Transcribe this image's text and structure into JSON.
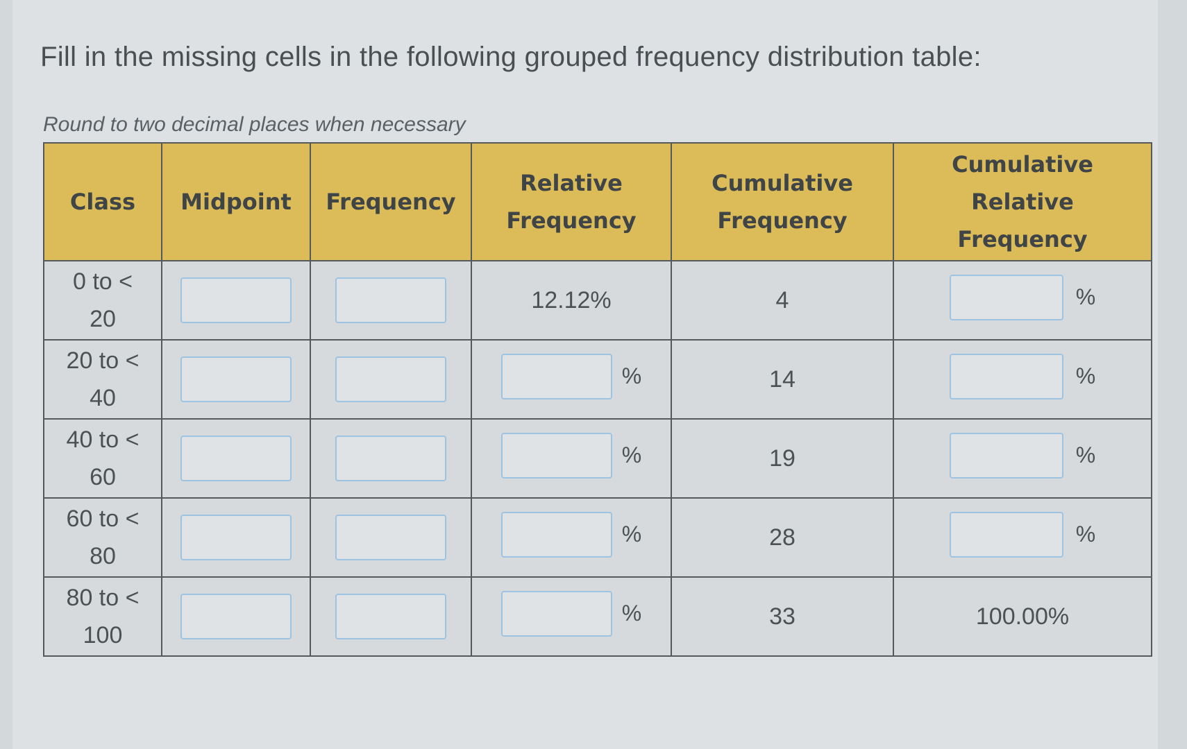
{
  "question": {
    "prompt": "Fill in the missing cells in the following grouped frequency distribution table:",
    "hint": "Round to two decimal places when necessary"
  },
  "table": {
    "headers": {
      "class": "Class",
      "midpoint": "Midpoint",
      "frequency": "Frequency",
      "relative_frequency_line1": "Relative",
      "relative_frequency_line2": "Frequency",
      "cumulative_frequency_line1": "Cumulative",
      "cumulative_frequency_line2": "Frequency",
      "cumulative_relative_frequency_line1": "Cumulative",
      "cumulative_relative_frequency_line2": "Relative",
      "cumulative_relative_frequency_line3": "Frequency"
    },
    "percent_sign": "%",
    "rows": [
      {
        "class_line1": "0 to <",
        "class_line2": "20",
        "midpoint": "",
        "frequency": "",
        "relative_frequency": "12.12%",
        "cumulative_frequency": "4",
        "cumulative_relative_frequency": ""
      },
      {
        "class_line1": "20 to <",
        "class_line2": "40",
        "midpoint": "",
        "frequency": "",
        "relative_frequency": "",
        "cumulative_frequency": "14",
        "cumulative_relative_frequency": ""
      },
      {
        "class_line1": "40 to <",
        "class_line2": "60",
        "midpoint": "",
        "frequency": "",
        "relative_frequency": "",
        "cumulative_frequency": "19",
        "cumulative_relative_frequency": ""
      },
      {
        "class_line1": "60 to <",
        "class_line2": "80",
        "midpoint": "",
        "frequency": "",
        "relative_frequency": "",
        "cumulative_frequency": "28",
        "cumulative_relative_frequency": ""
      },
      {
        "class_line1": "80 to <",
        "class_line2": "100",
        "midpoint": "",
        "frequency": "",
        "relative_frequency": "",
        "cumulative_frequency": "33",
        "cumulative_relative_frequency": "100.00%"
      }
    ]
  }
}
